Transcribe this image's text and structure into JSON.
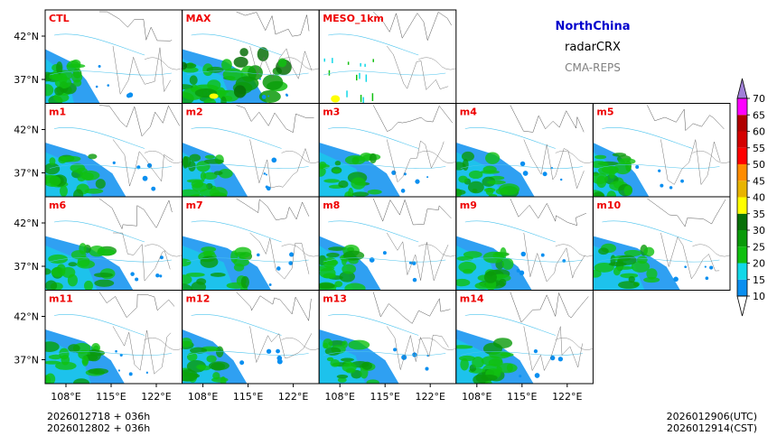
{
  "header": {
    "region": "NorthChina",
    "variable": "radarCRX",
    "model": "CMA-REPS"
  },
  "panels": [
    {
      "label": "CTL",
      "row": 0,
      "col": 0
    },
    {
      "label": "MAX",
      "row": 0,
      "col": 1
    },
    {
      "label": "MESO_1km",
      "row": 0,
      "col": 2
    },
    {
      "label": "m1",
      "row": 1,
      "col": 0
    },
    {
      "label": "m2",
      "row": 1,
      "col": 1
    },
    {
      "label": "m3",
      "row": 1,
      "col": 2
    },
    {
      "label": "m4",
      "row": 1,
      "col": 3
    },
    {
      "label": "m5",
      "row": 1,
      "col": 4
    },
    {
      "label": "m6",
      "row": 2,
      "col": 0
    },
    {
      "label": "m7",
      "row": 2,
      "col": 1
    },
    {
      "label": "m8",
      "row": 2,
      "col": 2
    },
    {
      "label": "m9",
      "row": 2,
      "col": 3
    },
    {
      "label": "m10",
      "row": 2,
      "col": 4
    },
    {
      "label": "m11",
      "row": 3,
      "col": 0
    },
    {
      "label": "m12",
      "row": 3,
      "col": 1
    },
    {
      "label": "m13",
      "row": 3,
      "col": 2
    },
    {
      "label": "m14",
      "row": 3,
      "col": 3
    }
  ],
  "lat_ticks": [
    "42°N",
    "37°N"
  ],
  "lon_ticks": [
    "108°E",
    "115°E",
    "122°E"
  ],
  "colorbar": {
    "levels": [
      10,
      15,
      20,
      25,
      30,
      35,
      40,
      45,
      50,
      55,
      60,
      65,
      70
    ],
    "colors": [
      "#0a8ff0",
      "#12d8e8",
      "#10c010",
      "#0a9a0a",
      "#087008",
      "#ffff00",
      "#e8b400",
      "#ff8c00",
      "#ff0000",
      "#d40000",
      "#b00000",
      "#ff00ff",
      "#9000c8",
      "#a080d8"
    ]
  },
  "footer": {
    "init_line1": "2026012718  +  036h",
    "init_line2": "2026012802  +  036h",
    "valid_utc": "2026012906(UTC)",
    "valid_cst": "2026012914(CST)"
  }
}
